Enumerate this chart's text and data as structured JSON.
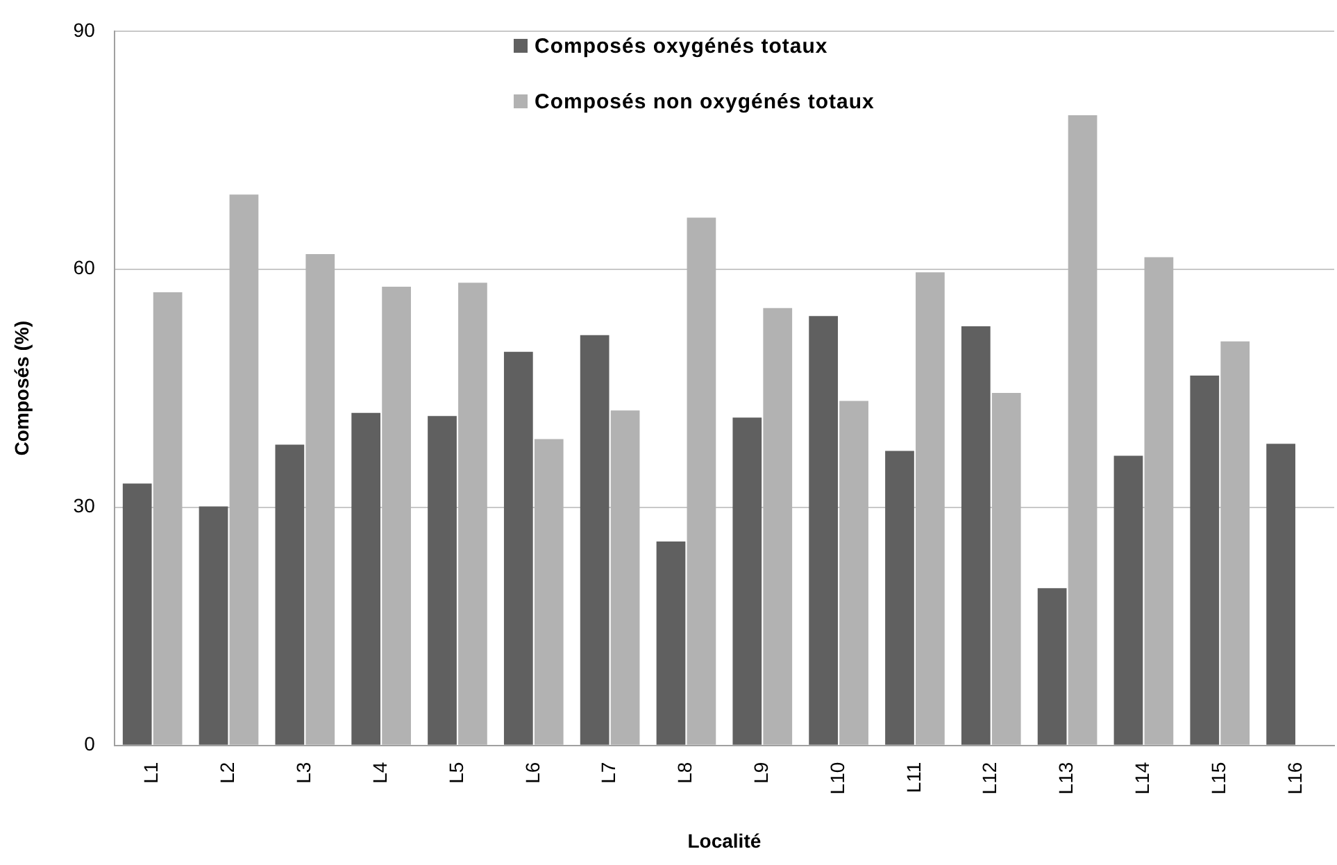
{
  "chart_data": {
    "type": "bar",
    "xlabel": "Localité",
    "ylabel": "Composés (%)",
    "categories": [
      "L1",
      "L2",
      "L3",
      "L4",
      "L5",
      "L6",
      "L7",
      "L8",
      "L9",
      "L10",
      "L11",
      "L12",
      "L13",
      "L14",
      "L15",
      "L16"
    ],
    "series": [
      {
        "name": "Composés oxygénés totaux",
        "color": "#606060",
        "values": [
          33.0,
          30.1,
          37.9,
          41.9,
          41.5,
          49.6,
          51.7,
          25.7,
          41.3,
          54.1,
          37.1,
          52.8,
          19.8,
          36.5,
          46.6,
          38.0
        ]
      },
      {
        "name": "Composés non oxygénés totaux",
        "color": "#b2b2b2",
        "values": [
          57.1,
          69.4,
          61.9,
          57.8,
          58.3,
          38.6,
          42.2,
          66.5,
          55.1,
          43.4,
          59.6,
          44.4,
          79.4,
          61.5,
          50.9,
          null
        ]
      }
    ],
    "ylim": [
      0,
      90
    ],
    "yticks": [
      0,
      30,
      60,
      90
    ],
    "grid": "y",
    "legend": "top"
  }
}
